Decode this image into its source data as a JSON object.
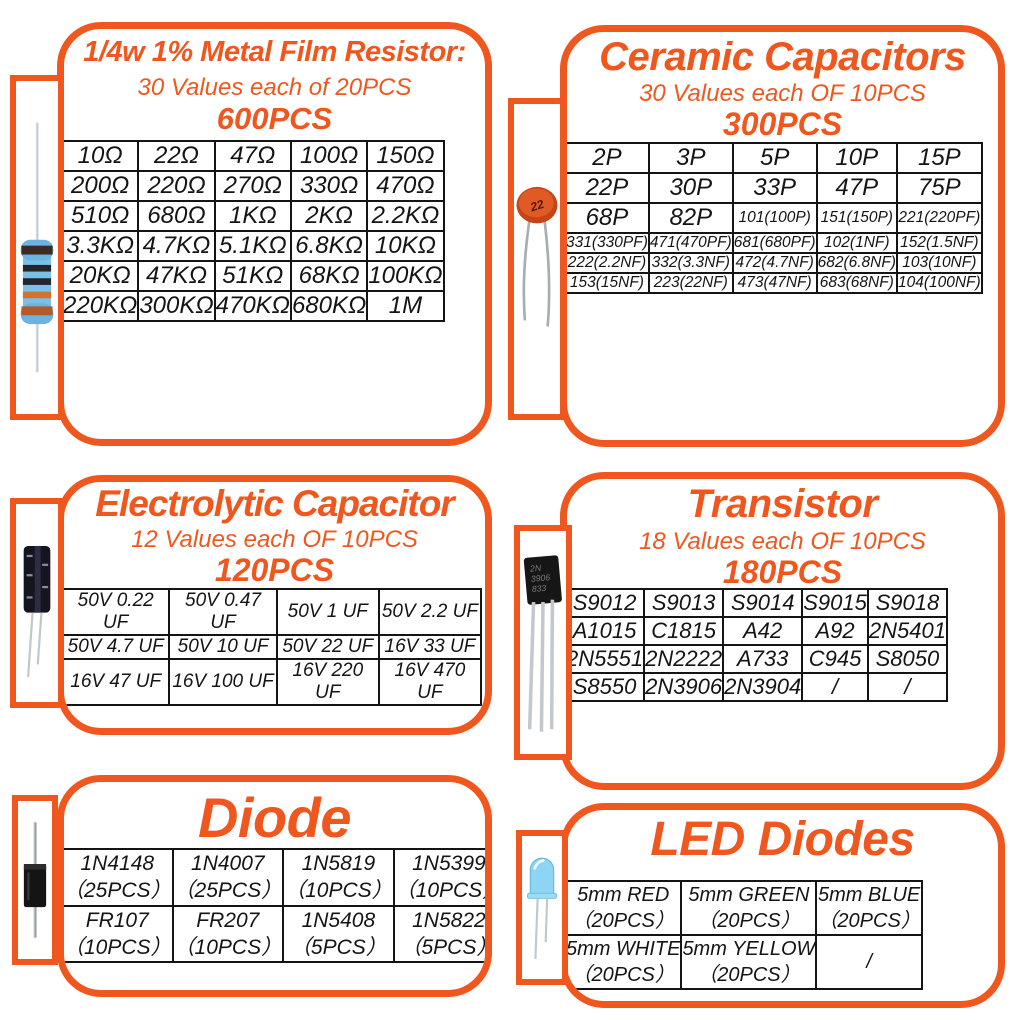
{
  "accent_color": "#F0571E",
  "panels": [
    {
      "id": "resistor",
      "title": "1/4w 1% Metal Film Resistor:",
      "subtitle": "30 Values each of 20PCS",
      "total": "600PCS",
      "icon": "metal-film-resistor",
      "table": [
        [
          "10Ω",
          "22Ω",
          "47Ω",
          "100Ω",
          "150Ω"
        ],
        [
          "200Ω",
          "220Ω",
          "270Ω",
          "330Ω",
          "470Ω"
        ],
        [
          "510Ω",
          "680Ω",
          "1KΩ",
          "2KΩ",
          "2.2KΩ"
        ],
        [
          "3.3KΩ",
          "4.7KΩ",
          "5.1KΩ",
          "6.8KΩ",
          "10KΩ"
        ],
        [
          "20KΩ",
          "47KΩ",
          "51KΩ",
          "68KΩ",
          "100KΩ"
        ],
        [
          "220KΩ",
          "300KΩ",
          "470KΩ",
          "680KΩ",
          "1M"
        ]
      ]
    },
    {
      "id": "ceramic",
      "title": "Ceramic Capacitors",
      "subtitle": "30 Values each OF 10PCS",
      "total": "300PCS",
      "icon": "ceramic-capacitor",
      "marking": "22",
      "table": [
        [
          "2P",
          "3P",
          "5P",
          "10P",
          "15P"
        ],
        [
          "22P",
          "30P",
          "33P",
          "47P",
          "75P"
        ],
        [
          "68P",
          "82P",
          "101(100P)",
          "151(150P)",
          "221(220PF)"
        ],
        [
          "331(330PF)",
          "471(470PF)",
          "681(680PF)",
          "102(1NF)",
          "152(1.5NF)"
        ],
        [
          "222(2.2NF)",
          "332(3.3NF)",
          "472(4.7NF)",
          "682(6.8NF)",
          "103(10NF)"
        ],
        [
          "153(15NF)",
          "223(22NF)",
          "473(47NF)",
          "683(68NF)",
          "104(100NF)"
        ]
      ]
    },
    {
      "id": "electrolytic",
      "title": "Electrolytic Capacitor",
      "subtitle": "12 Values each OF 10PCS",
      "total": "120PCS",
      "icon": "electrolytic-capacitor",
      "table": [
        [
          "50V 0.22 UF",
          "50V 0.47 UF",
          "50V 1 UF",
          "50V 2.2 UF"
        ],
        [
          "50V 4.7 UF",
          "50V 10 UF",
          "50V 22 UF",
          "16V 33 UF"
        ],
        [
          "16V 47 UF",
          "16V 100 UF",
          "16V 220 UF",
          "16V 470 UF"
        ]
      ]
    },
    {
      "id": "transistor",
      "title": "Transistor",
      "subtitle": "18 Values each OF 10PCS",
      "total": "180PCS",
      "icon": "to92-transistor",
      "marking": [
        "2N",
        "3906",
        "833"
      ],
      "table": [
        [
          "S9012",
          "S9013",
          "S9014",
          "S9015",
          "S9018"
        ],
        [
          "A1015",
          "C1815",
          "A42",
          "A92",
          "2N5401"
        ],
        [
          "2N5551",
          "2N2222",
          "A733",
          "C945",
          "S8050"
        ],
        [
          "S8550",
          "2N3906",
          "2N3904",
          "/",
          "/"
        ]
      ]
    },
    {
      "id": "diode",
      "title": "Diode",
      "icon": "axial-diode",
      "table": [
        [
          "1N4148\n（25PCS）",
          "1N4007\n（25PCS）",
          "1N5819\n（10PCS）",
          "1N5399\n（10PCS）"
        ],
        [
          "FR107\n（10PCS）",
          "FR207\n（10PCS）",
          "1N5408\n（5PCS）",
          "1N5822\n（5PCS）"
        ]
      ]
    },
    {
      "id": "led",
      "title": "LED Diodes",
      "icon": "5mm-led",
      "table": [
        [
          "5mm RED\n（20PCS）",
          "5mm GREEN\n（20PCS）",
          "5mm BLUE\n（20PCS）"
        ],
        [
          "5mm WHITE\n（20PCS）",
          "5mm YELLOW\n（20PCS）",
          "/"
        ]
      ]
    }
  ]
}
